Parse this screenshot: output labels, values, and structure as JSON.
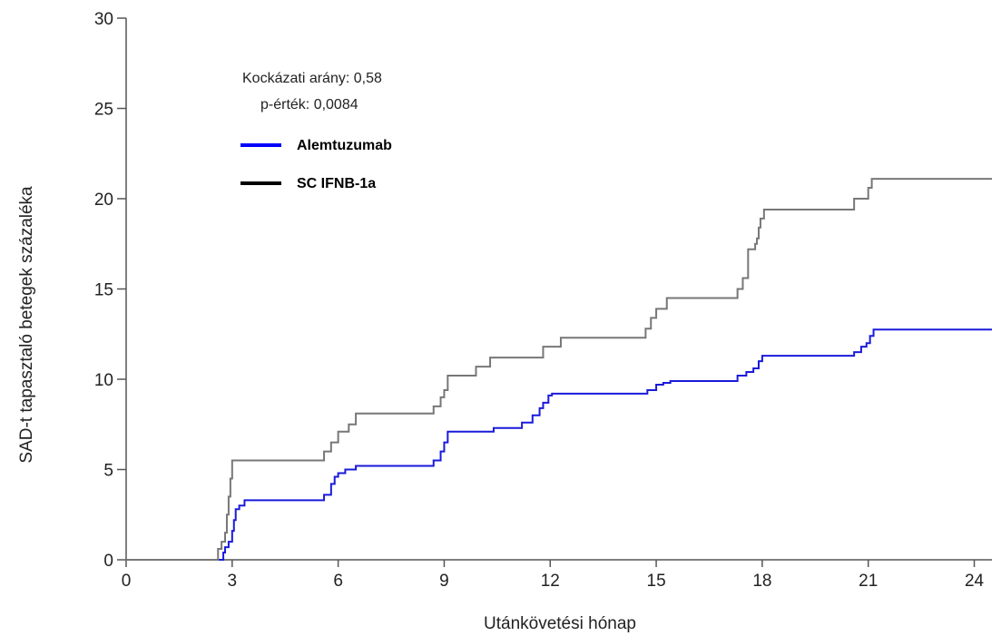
{
  "chart_data": {
    "type": "line",
    "step": true,
    "xlabel": "Utánkövetési hónap",
    "ylabel": "SAD-t tapasztaló betegek százaléka",
    "xlim": [
      0,
      24.5
    ],
    "ylim": [
      0,
      30
    ],
    "xticks": [
      0,
      3,
      6,
      9,
      12,
      15,
      18,
      21,
      24
    ],
    "yticks": [
      0,
      5,
      10,
      15,
      20,
      25,
      30
    ],
    "grid": false,
    "legend_position": "top-left",
    "annotations": {
      "hazard_ratio": "Kockázati arány: 0,58",
      "p_value": "p-érték: 0,0084"
    },
    "series": [
      {
        "name": "Alemtuzumab",
        "color": "#1a1adb",
        "legend_color": "#0000ff",
        "x": [
          0,
          2.75,
          2.8,
          2.9,
          3.0,
          3.05,
          3.1,
          3.2,
          3.35,
          3.5,
          5.6,
          5.8,
          5.9,
          6.0,
          6.2,
          6.5,
          8.7,
          8.9,
          9.0,
          9.1,
          9.2,
          9.25,
          10.4,
          10.6,
          11.2,
          11.5,
          11.7,
          11.8,
          11.95,
          12.05,
          14.75,
          15.0,
          15.2,
          15.4,
          17.3,
          17.55,
          17.75,
          17.9,
          18.0,
          20.6,
          20.8,
          20.95,
          21.05,
          21.15,
          24.5
        ],
        "y": [
          0,
          0.4,
          0.7,
          1.0,
          1.6,
          2.2,
          2.8,
          3.0,
          3.3,
          3.3,
          3.6,
          4.2,
          4.6,
          4.8,
          5.0,
          5.2,
          5.5,
          6.0,
          6.5,
          7.1,
          7.1,
          7.1,
          7.3,
          7.3,
          7.6,
          8.0,
          8.4,
          8.7,
          9.1,
          9.2,
          9.4,
          9.7,
          9.8,
          9.9,
          10.2,
          10.4,
          10.6,
          11.0,
          11.3,
          11.5,
          11.8,
          12.0,
          12.4,
          12.75,
          12.75
        ]
      },
      {
        "name": "SC IFNB-1a",
        "color": "#777777",
        "legend_color": "#000000",
        "x": [
          0,
          2.6,
          2.7,
          2.8,
          2.85,
          2.9,
          2.95,
          3.0,
          5.6,
          5.8,
          6.0,
          6.3,
          6.5,
          8.7,
          8.9,
          9.0,
          9.1,
          9.2,
          9.3,
          9.9,
          10.3,
          10.8,
          11.8,
          12.05,
          12.3,
          14.7,
          14.85,
          15.0,
          15.3,
          17.3,
          17.45,
          17.6,
          17.8,
          17.85,
          17.9,
          17.95,
          18.05,
          20.6,
          21.0,
          21.1,
          24.5
        ],
        "y": [
          0,
          0.6,
          1.0,
          1.5,
          2.5,
          3.5,
          4.5,
          5.5,
          6.0,
          6.5,
          7.1,
          7.5,
          8.1,
          8.5,
          9.0,
          9.4,
          10.2,
          10.2,
          10.2,
          10.7,
          11.2,
          11.2,
          11.8,
          11.8,
          12.3,
          12.8,
          13.4,
          13.9,
          14.5,
          15.0,
          15.6,
          17.2,
          17.5,
          17.8,
          18.4,
          18.9,
          19.4,
          20.0,
          20.6,
          21.1,
          21.1
        ]
      }
    ]
  }
}
